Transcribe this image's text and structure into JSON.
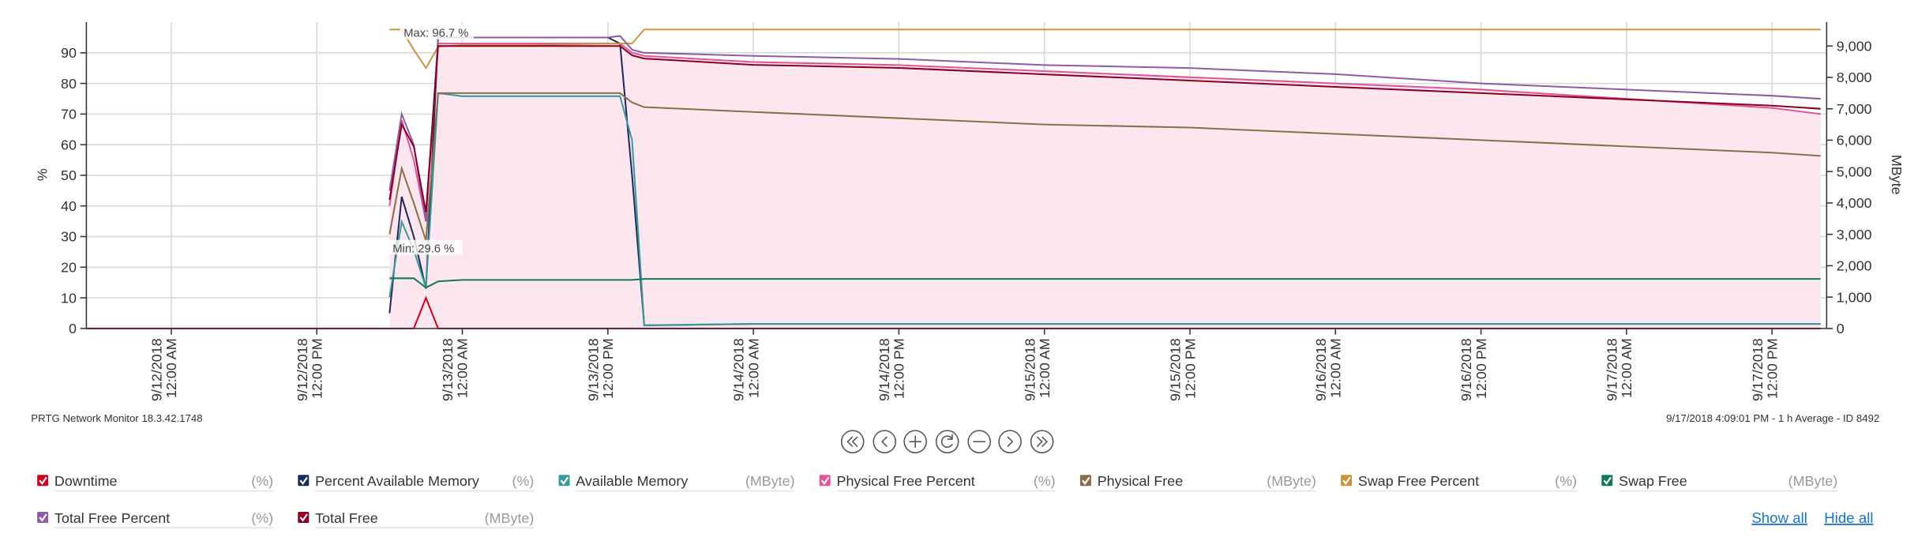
{
  "chart_data": {
    "type": "line",
    "y_label": "%",
    "y2_label": "MByte",
    "x": [
      "9/11/2018 5:00 PM",
      "9/12/2018 6:00 PM",
      "9/12/2018 7:00 PM",
      "9/12/2018 8:00 PM",
      "9/12/2018 9:00 PM",
      "9/12/2018 10:00 PM",
      "9/13/2018 12:00 AM",
      "9/13/2018 6:00 AM",
      "9/13/2018 12:00 PM",
      "9/13/2018 1:00 PM",
      "9/13/2018 2:00 PM",
      "9/13/2018 3:00 PM",
      "9/14/2018 12:00 AM",
      "9/14/2018 12:00 PM",
      "9/15/2018 12:00 AM",
      "9/15/2018 12:00 PM",
      "9/16/2018 12:00 AM",
      "9/16/2018 12:00 PM",
      "9/17/2018 12:00 AM",
      "9/17/2018 12:00 PM",
      "9/17/2018 4:00 PM"
    ],
    "xlim": [
      "9/11/2018 5:00 PM",
      "9/17/2018 4:30 PM"
    ],
    "xticks": [
      "9/12/2018 12:00 AM",
      "9/12/2018 12:00 PM",
      "9/13/2018 12:00 AM",
      "9/13/2018 12:00 PM",
      "9/14/2018 12:00 AM",
      "9/14/2018 12:00 PM",
      "9/15/2018 12:00 AM",
      "9/15/2018 12:00 PM",
      "9/16/2018 12:00 AM",
      "9/16/2018 12:00 PM",
      "9/17/2018 12:00 AM",
      "9/17/2018 12:00 PM"
    ],
    "ylim": [
      0,
      100
    ],
    "yticks": [
      0,
      10,
      20,
      30,
      40,
      50,
      60,
      70,
      80,
      90
    ],
    "y2lim": [
      0,
      9760
    ],
    "y2ticks": [
      0,
      {
        "value": 1000,
        "label": "1,000"
      },
      {
        "value": 2000,
        "label": "2,000"
      },
      {
        "value": 3000,
        "label": "3,000"
      },
      {
        "value": 4000,
        "label": "4,000"
      },
      {
        "value": 5000,
        "label": "5,000"
      },
      {
        "value": 6000,
        "label": "6,000"
      },
      {
        "value": 7000,
        "label": "7,000"
      },
      {
        "value": 8000,
        "label": "8,000"
      },
      {
        "value": 9000,
        "label": "9,000"
      }
    ],
    "grid": true,
    "annotations": [
      "Max: 96.7 %",
      "Min: 29.6 %"
    ],
    "series": [
      {
        "name": "Downtime",
        "unit": "(%)",
        "color": "#d0021b",
        "values": [
          0,
          0,
          0,
          0,
          10,
          0,
          0,
          0,
          0,
          0,
          0,
          0,
          0,
          0,
          0,
          0,
          0,
          0,
          0,
          0,
          0
        ]
      },
      {
        "name": "Percent Available Memory",
        "unit": "(%)",
        "color": "#1c2a5c",
        "values": [
          null,
          5,
          43,
          30,
          13,
          95,
          95,
          95,
          95,
          93,
          50,
          1,
          1.5,
          1.5,
          1.5,
          1.5,
          1.5,
          1.5,
          1.5,
          1.5,
          1.5
        ]
      },
      {
        "name": "Available Memory",
        "unit": "(MByte)",
        "color": "#3a9a9a",
        "axis": "y2",
        "values": [
          null,
          1000,
          3400,
          2500,
          1300,
          7500,
          7400,
          7400,
          7400,
          7400,
          6000,
          100,
          150,
          150,
          150,
          150,
          150,
          150,
          150,
          150,
          150
        ]
      },
      {
        "name": "Physical Free Percent",
        "unit": "(%)",
        "color": "#e0559a",
        "fill": "#fce6f0",
        "values": [
          null,
          40,
          68,
          55,
          35,
          93,
          93,
          93,
          93,
          93,
          90,
          89,
          87,
          86,
          84,
          82,
          80,
          78,
          75,
          72,
          70
        ]
      },
      {
        "name": "Physical Free",
        "unit": "(MByte)",
        "color": "#8b6d4b",
        "axis": "y2",
        "values": [
          null,
          3000,
          5100,
          4000,
          2800,
          7500,
          7500,
          7500,
          7500,
          7500,
          7200,
          7050,
          6900,
          6700,
          6500,
          6400,
          6200,
          6000,
          5800,
          5600,
          5500
        ]
      },
      {
        "name": "Swap Free Percent",
        "unit": "(%)",
        "color": "#c8963c",
        "values": [
          null,
          97.6,
          97.6,
          91,
          85,
          92,
          92.5,
          92.5,
          93,
          93,
          93,
          97.6,
          97.6,
          97.6,
          97.6,
          97.6,
          97.6,
          97.6,
          97.6,
          97.6,
          97.6
        ]
      },
      {
        "name": "Swap Free",
        "unit": "(MByte)",
        "color": "#117a55",
        "axis": "y2",
        "values": [
          null,
          1600,
          1600,
          1600,
          1300,
          1500,
          1550,
          1550,
          1550,
          1550,
          1550,
          1580,
          1580,
          1580,
          1580,
          1580,
          1580,
          1580,
          1580,
          1580,
          1580
        ]
      },
      {
        "name": "Total Free Percent",
        "unit": "(%)",
        "color": "#8e5aa8",
        "values": [
          null,
          45,
          70,
          60,
          35,
          95,
          95,
          95,
          95,
          95.5,
          91,
          90,
          89,
          88,
          86,
          85,
          83,
          80,
          78,
          76,
          75
        ]
      },
      {
        "name": "Total Free",
        "unit": "(MByte)",
        "color": "#8b0020",
        "axis": "y2",
        "values": [
          null,
          4100,
          6500,
          5800,
          3700,
          9000,
          9000,
          9000,
          9000,
          9000,
          8700,
          8600,
          8400,
          8300,
          8100,
          7900,
          7700,
          7500,
          7300,
          7100,
          7000
        ]
      }
    ]
  },
  "footer": {
    "left": "PRTG Network Monitor 18.3.42.1748",
    "right": "9/17/2018 4:09:01 PM - 1 h Average - ID 8492"
  },
  "links": [
    "Show all",
    "Hide all"
  ]
}
